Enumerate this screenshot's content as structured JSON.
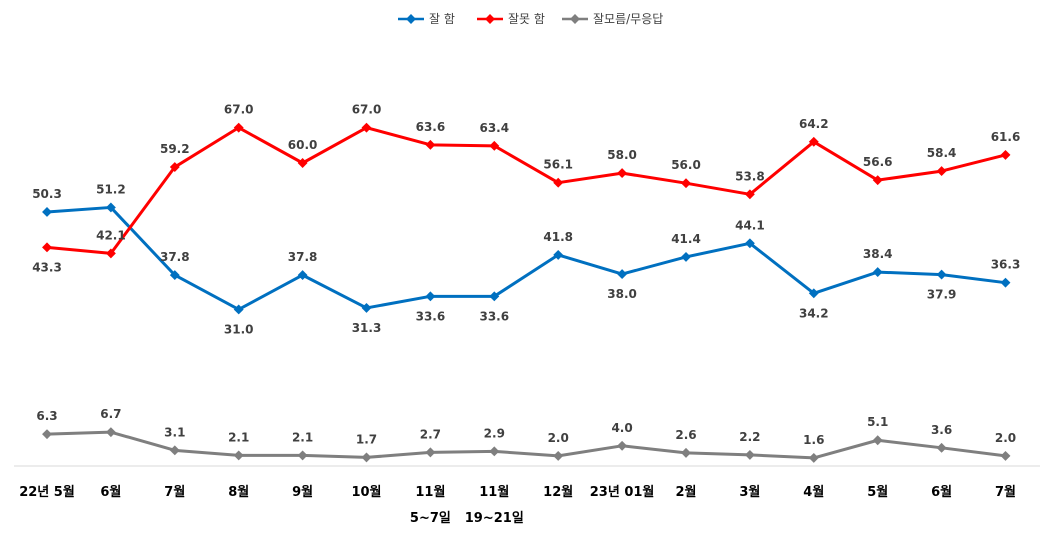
{
  "chart_data": {
    "type": "line",
    "title": "",
    "xlabel": "",
    "ylabel": "",
    "categories": [
      "22년 5월",
      "6월",
      "7월",
      "8월",
      "9월",
      "10월",
      "11월",
      "11월",
      "12월",
      "23년 01월",
      "2월",
      "3월",
      "4월",
      "5월",
      "6월",
      "7월"
    ],
    "category_sublabels": [
      "",
      "",
      "",
      "",
      "",
      "",
      "5~7일",
      "19~21일",
      "",
      "",
      "",
      "",
      "",
      "",
      "",
      ""
    ],
    "ylim": [
      0,
      75
    ],
    "grid": false,
    "legend_position": "top",
    "series": [
      {
        "name": "잘 함",
        "color": "#0070C0",
        "values": [
          50.3,
          51.2,
          37.8,
          31.0,
          37.8,
          31.3,
          33.6,
          33.6,
          41.8,
          38.0,
          41.4,
          44.1,
          34.2,
          38.4,
          37.9,
          36.3
        ],
        "labels": [
          "50.3",
          "51.2",
          "37.8",
          "31.0",
          "37.8",
          "31.3",
          "33.6",
          "33.6",
          "41.8",
          "38.0",
          "41.4",
          "44.1",
          "34.2",
          "38.4",
          "37.9",
          "36.3"
        ]
      },
      {
        "name": "잘못 함",
        "color": "#FF0000",
        "values": [
          43.3,
          42.1,
          59.2,
          67.0,
          60.0,
          67.0,
          63.6,
          63.4,
          56.1,
          58.0,
          56.0,
          53.8,
          64.2,
          56.6,
          58.4,
          61.6
        ],
        "labels": [
          "43.3",
          "42.1",
          "59.2",
          "67.0",
          "60.0",
          "67.0",
          "63.6",
          "63.4",
          "56.1",
          "58.0",
          "56.0",
          "53.8",
          "64.2",
          "56.6",
          "58.4",
          "61.6"
        ]
      },
      {
        "name": "잘모름/무응답",
        "color": "#7F7F7F",
        "values": [
          6.3,
          6.7,
          3.1,
          2.1,
          2.1,
          1.7,
          2.7,
          2.9,
          2.0,
          4.0,
          2.6,
          2.2,
          1.6,
          5.1,
          3.6,
          2.0
        ],
        "labels": [
          "6.3",
          "6.7",
          "3.1",
          "2.1",
          "2.1",
          "1.7",
          "2.7",
          "2.9",
          "2.0",
          "4.0",
          "2.6",
          "2.2",
          "1.6",
          "5.1",
          "3.6",
          "2.0"
        ]
      }
    ]
  }
}
